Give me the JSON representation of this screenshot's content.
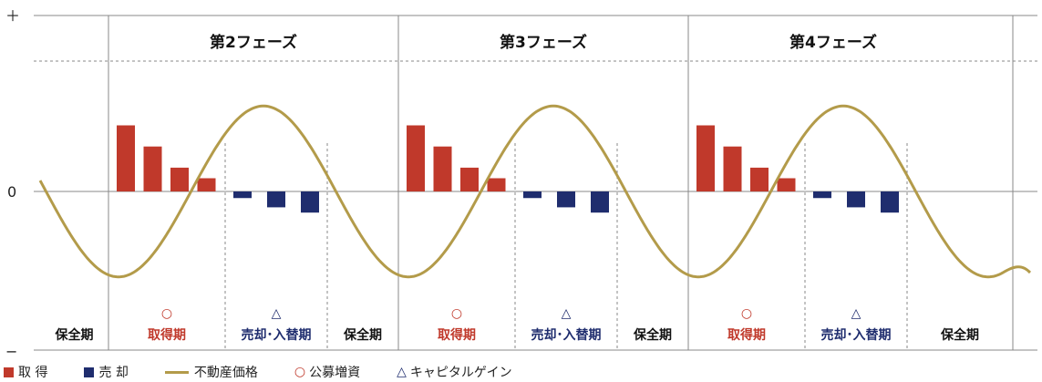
{
  "colors": {
    "acquire": "#c0392b",
    "sell": "#1f2d6e",
    "price": "#b39b4a",
    "acquire_text": "#c0392b",
    "sell_text": "#1f2d6e",
    "grid": "#888888"
  },
  "axis": {
    "plus": "＋",
    "zero": "0",
    "minus": "−"
  },
  "chart_data": {
    "type": "bar",
    "phases": [
      "第2フェーズ",
      "第3フェーズ",
      "第4フェーズ"
    ],
    "periods": {
      "hold": "保全期",
      "acquire": "取得期",
      "sell": "売却･入替期",
      "acquire_marker": "○",
      "sell_marker": "△"
    },
    "acquire_values": [
      0.5,
      0.34,
      0.18,
      0.1
    ],
    "sell_values": [
      -0.05,
      -0.12,
      -0.16
    ],
    "price_curve": {
      "amplitude": 0.66,
      "description": "sine-like wave, peaks during acquire/sell transition"
    },
    "ylim": [
      -1,
      1
    ]
  },
  "legend": [
    {
      "kind": "square",
      "color_key": "acquire",
      "label": "取 得"
    },
    {
      "kind": "square",
      "color_key": "sell",
      "label": "売 却"
    },
    {
      "kind": "line",
      "color_key": "price",
      "label": "不動産価格"
    },
    {
      "kind": "glyph",
      "glyph": "○",
      "color_key": "acquire_text",
      "label": "公募増資"
    },
    {
      "kind": "glyph",
      "glyph": "△",
      "color_key": "sell_text",
      "label": "キャピタルゲイン"
    }
  ]
}
